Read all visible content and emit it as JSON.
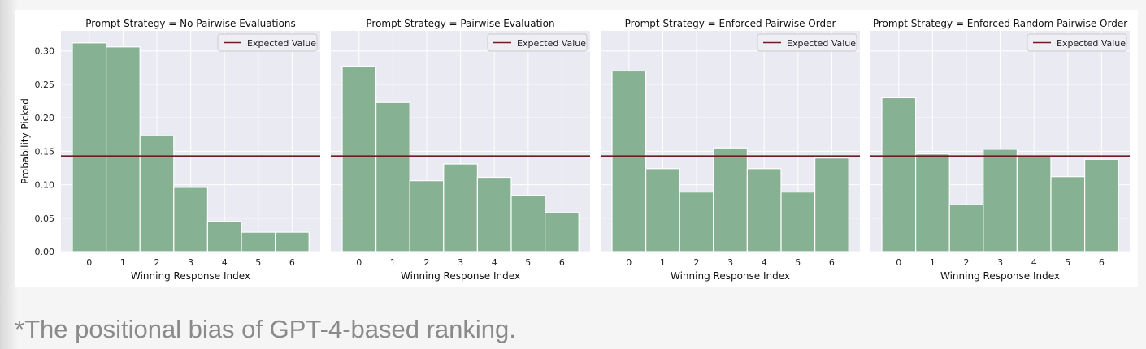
{
  "caption": "*The positional bias of GPT-4-based ranking.",
  "colors": {
    "bar_fill": "#87b193",
    "bar_edge": "#ffffff",
    "expected_line": "#6b1f1f",
    "plot_bg": "#eaeaf2",
    "grid": "#ffffff"
  },
  "chart_data": [
    {
      "type": "bar",
      "title": "Prompt Strategy = No Pairwise Evaluations",
      "xlabel": "Winning Response Index",
      "ylabel": "Probability Picked",
      "categories": [
        "0",
        "1",
        "2",
        "3",
        "4",
        "5",
        "6"
      ],
      "values": [
        0.312,
        0.306,
        0.173,
        0.096,
        0.045,
        0.029,
        0.029
      ],
      "expected_value": 0.1429,
      "legend": "Expected Value",
      "legend_position": "top-right",
      "yticks": [
        "0.00",
        "0.05",
        "0.10",
        "0.15",
        "0.20",
        "0.25",
        "0.30"
      ],
      "ylim": [
        0,
        0.33
      ],
      "grid": true
    },
    {
      "type": "bar",
      "title": "Prompt Strategy = Pairwise Evaluation",
      "xlabel": "Winning Response Index",
      "ylabel": "",
      "categories": [
        "0",
        "1",
        "2",
        "3",
        "4",
        "5",
        "6"
      ],
      "values": [
        0.277,
        0.223,
        0.106,
        0.131,
        0.111,
        0.084,
        0.058
      ],
      "expected_value": 0.1429,
      "legend": "Expected Value",
      "legend_position": "top-right",
      "yticks": [],
      "ylim": [
        0,
        0.33
      ],
      "grid": true
    },
    {
      "type": "bar",
      "title": "Prompt Strategy = Enforced Pairwise Order",
      "xlabel": "Winning Response Index",
      "ylabel": "",
      "categories": [
        "0",
        "1",
        "2",
        "3",
        "4",
        "5",
        "6"
      ],
      "values": [
        0.27,
        0.124,
        0.089,
        0.155,
        0.124,
        0.089,
        0.14
      ],
      "expected_value": 0.1429,
      "legend": "Expected Value",
      "legend_position": "top-right",
      "yticks": [],
      "ylim": [
        0,
        0.33
      ],
      "grid": true
    },
    {
      "type": "bar",
      "title": "Prompt Strategy = Enforced Random Pairwise Order",
      "xlabel": "Winning Response Index",
      "ylabel": "",
      "categories": [
        "0",
        "1",
        "2",
        "3",
        "4",
        "5",
        "6"
      ],
      "values": [
        0.23,
        0.146,
        0.07,
        0.153,
        0.142,
        0.112,
        0.138
      ],
      "expected_value": 0.1429,
      "legend": "Expected Value",
      "legend_position": "top-right",
      "yticks": [],
      "ylim": [
        0,
        0.33
      ],
      "grid": true
    }
  ]
}
